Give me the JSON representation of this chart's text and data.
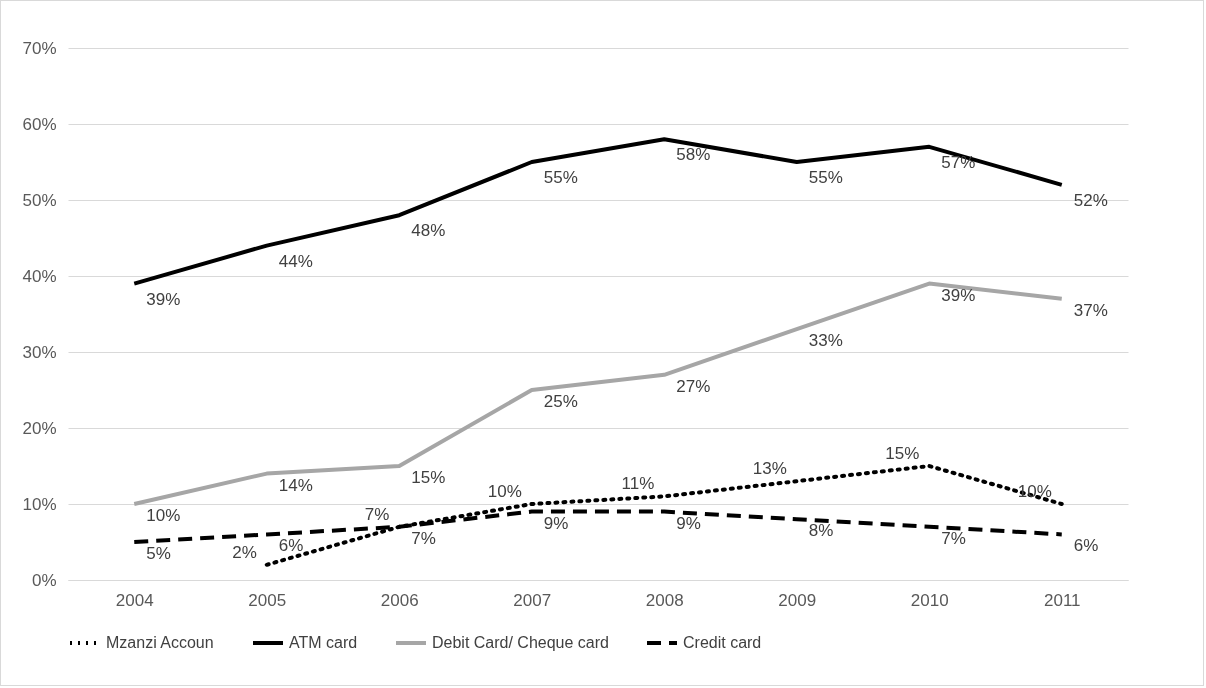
{
  "chart_data": {
    "type": "line",
    "categories": [
      "2004",
      "2005",
      "2006",
      "2007",
      "2008",
      "2009",
      "2010",
      "2011"
    ],
    "series": [
      {
        "name": "Mzanzi Accoun",
        "color": "#000000",
        "line_style": "dotted",
        "values": [
          null,
          2,
          7,
          10,
          11,
          13,
          15,
          10
        ],
        "value_labels": [
          null,
          "2%",
          "7%",
          "10%",
          "11%",
          "13%",
          "15%",
          "10%"
        ]
      },
      {
        "name": "ATM card",
        "color": "#000000",
        "line_style": "solid",
        "values": [
          39,
          44,
          48,
          55,
          58,
          55,
          57,
          52
        ],
        "value_labels": [
          "39%",
          "44%",
          "48%",
          "55%",
          "58%",
          "55%",
          "57%",
          "52%"
        ]
      },
      {
        "name": "Debit Card/ Cheque card",
        "color": "#a6a6a6",
        "line_style": "solid",
        "values": [
          10,
          14,
          15,
          25,
          27,
          33,
          39,
          37
        ],
        "value_labels": [
          "10%",
          "14%",
          "15%",
          "25%",
          "27%",
          "33%",
          "39%",
          "37%"
        ]
      },
      {
        "name": "Credit card",
        "color": "#000000",
        "line_style": "dashed",
        "values": [
          5,
          6,
          7,
          9,
          9,
          8,
          7,
          6
        ],
        "value_labels": [
          "5%",
          "6%",
          "7%",
          "9%",
          "9%",
          "8%",
          "7%",
          "6%"
        ]
      }
    ],
    "ylim": [
      0,
      70
    ],
    "yticks": [
      {
        "value": 0,
        "label": "0%"
      },
      {
        "value": 10,
        "label": "10%"
      },
      {
        "value": 20,
        "label": "20%"
      },
      {
        "value": 30,
        "label": "30%"
      },
      {
        "value": 40,
        "label": "40%"
      },
      {
        "value": 50,
        "label": "50%"
      },
      {
        "value": 60,
        "label": "60%"
      },
      {
        "value": 70,
        "label": "70%"
      }
    ],
    "grid": "y",
    "legend": "bottom"
  }
}
